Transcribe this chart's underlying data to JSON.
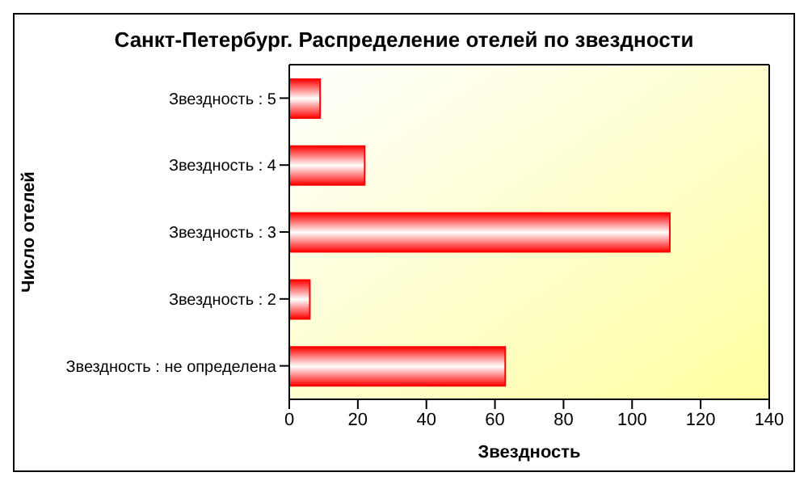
{
  "chart_data": {
    "type": "bar",
    "orientation": "horizontal",
    "title": "Санкт-Петербург. Распределение отелей по звездности",
    "xlabel": "Звездность",
    "ylabel": "Число отелей",
    "categories": [
      "Звездность : 5",
      "Звездность : 4",
      "Звездность : 3",
      "Звездность : 2",
      "Звездность : не определена"
    ],
    "values": [
      9,
      22,
      111,
      6,
      63
    ],
    "color": "#ff0000",
    "xlim": [
      0,
      140
    ],
    "xticks": [
      0,
      20,
      40,
      60,
      80,
      100,
      120,
      140
    ],
    "grid": false
  }
}
